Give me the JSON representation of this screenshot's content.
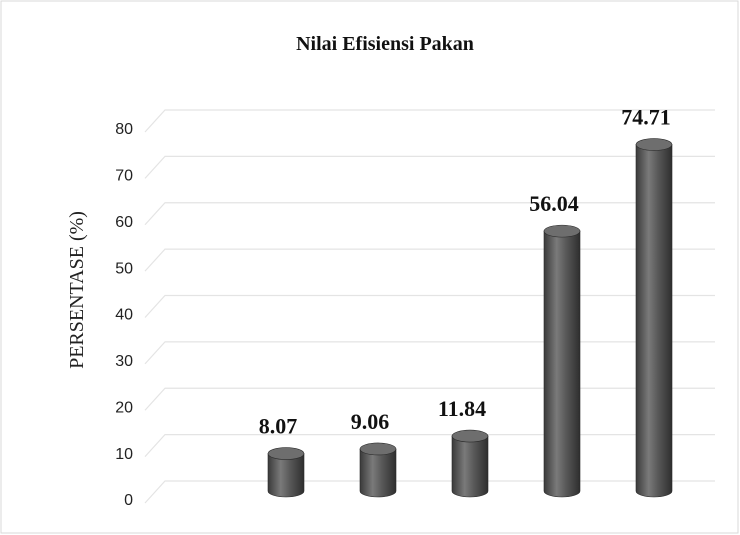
{
  "chart_data": {
    "type": "bar",
    "title": "Nilai Efisiensi Pakan",
    "y_label": "PERSENTASE  (%)",
    "categories": [
      null,
      null,
      null,
      null,
      null
    ],
    "values": [
      8.07,
      9.06,
      11.84,
      56.04,
      74.71
    ],
    "color": "#555555",
    "ylim": [
      0,
      80
    ],
    "yticks": [
      0,
      10,
      20,
      30,
      40,
      50,
      60,
      70,
      80
    ],
    "grid": true
  }
}
